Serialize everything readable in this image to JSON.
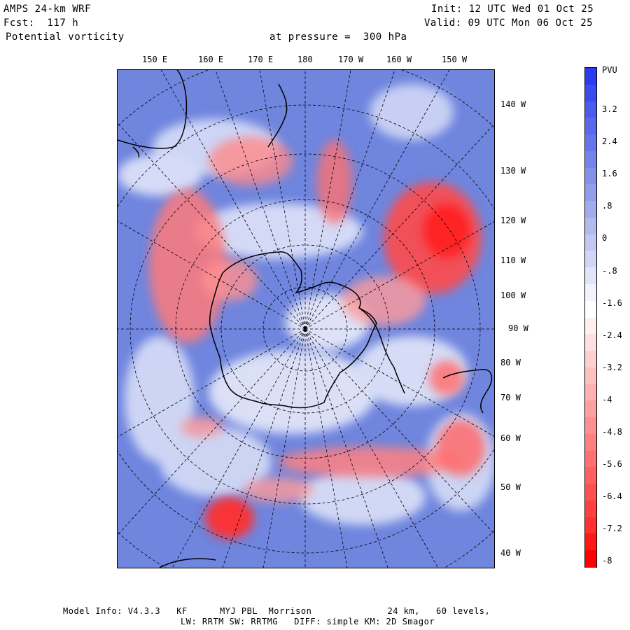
{
  "header": {
    "model": "AMPS 24-km WRF",
    "forecast": "Fcst:  117 h",
    "field": "Potential vorticity",
    "level": "at pressure =  300 hPa",
    "init": "Init: 12 UTC Wed 01 Oct 25",
    "valid": "Valid: 09 UTC Mon 06 Oct 25"
  },
  "map": {
    "top_lon_labels": [
      "150 E",
      "160 E",
      "170 E",
      "180",
      "170 W",
      "160 W",
      "150 W"
    ],
    "right_lon_labels": [
      "140 W",
      "130 W",
      "120 W",
      "110 W",
      "100 W",
      "90 W",
      "80 W",
      "70 W",
      "60 W",
      "50 W",
      "40 W"
    ],
    "colors": {
      "ocean_blue": "#6f85de",
      "positive_red": "#ff3030",
      "neutral": "#ffffff",
      "coast": "#000000"
    }
  },
  "colorbar": {
    "unit": "PVU",
    "labels": [
      "3.2",
      "2.4",
      "1.6",
      ".8",
      "0",
      "-.8",
      "-1.6",
      "-2.4",
      "-3.2",
      "-4",
      "-4.8",
      "-5.6",
      "-6.4",
      "-7.2",
      "-8"
    ],
    "colors": [
      "#2b3cf0",
      "#3a4bf0",
      "#4b5bee",
      "#5a69ec",
      "#6676ea",
      "#7584e8",
      "#8491e8",
      "#929ee9",
      "#a2acec",
      "#b2baef",
      "#c2c8f3",
      "#d2d6f6",
      "#e2e5fa",
      "#f2f3fd",
      "#ffffff",
      "#fff0f0",
      "#ffe0e0",
      "#ffd0d0",
      "#ffc0c0",
      "#ffb0b0",
      "#ffa0a0",
      "#ff9090",
      "#ff8080",
      "#ff7070",
      "#ff6060",
      "#ff5050",
      "#ff4040",
      "#ff3030",
      "#ff1818",
      "#ff0000"
    ]
  },
  "footer": {
    "line1": "Model Info: V4.3.3   KF      MYJ PBL  Morrison              24 km,   60 levels,",
    "line2": "LW: RRTM SW: RRTMG   DIFF: simple KM: 2D Smagor"
  }
}
